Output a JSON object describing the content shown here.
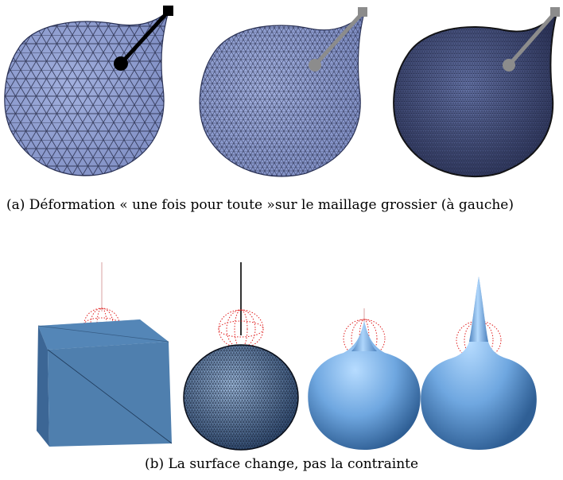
{
  "figure_a": {
    "panels": [
      "coarse-mesh",
      "medium-mesh",
      "fine-mesh"
    ],
    "caption": "(a) Déformation « une fois pour toute »sur le maillage grossier (à gauche)"
  },
  "figure_b": {
    "panels": [
      "cube",
      "sphere-mesh",
      "small-spike",
      "tall-spike"
    ],
    "caption": "(b) La surface change, pas la contrainte"
  },
  "colors": {
    "mesh_fill": "#8f9fd2",
    "wire": "#1b1f3a",
    "handle_active": "#000000",
    "handle_inactive": "#8c8c8c",
    "cube_blue": "#4f7fae",
    "smooth_blue": "#6fa7e0",
    "constraint_red": "#e02020"
  }
}
